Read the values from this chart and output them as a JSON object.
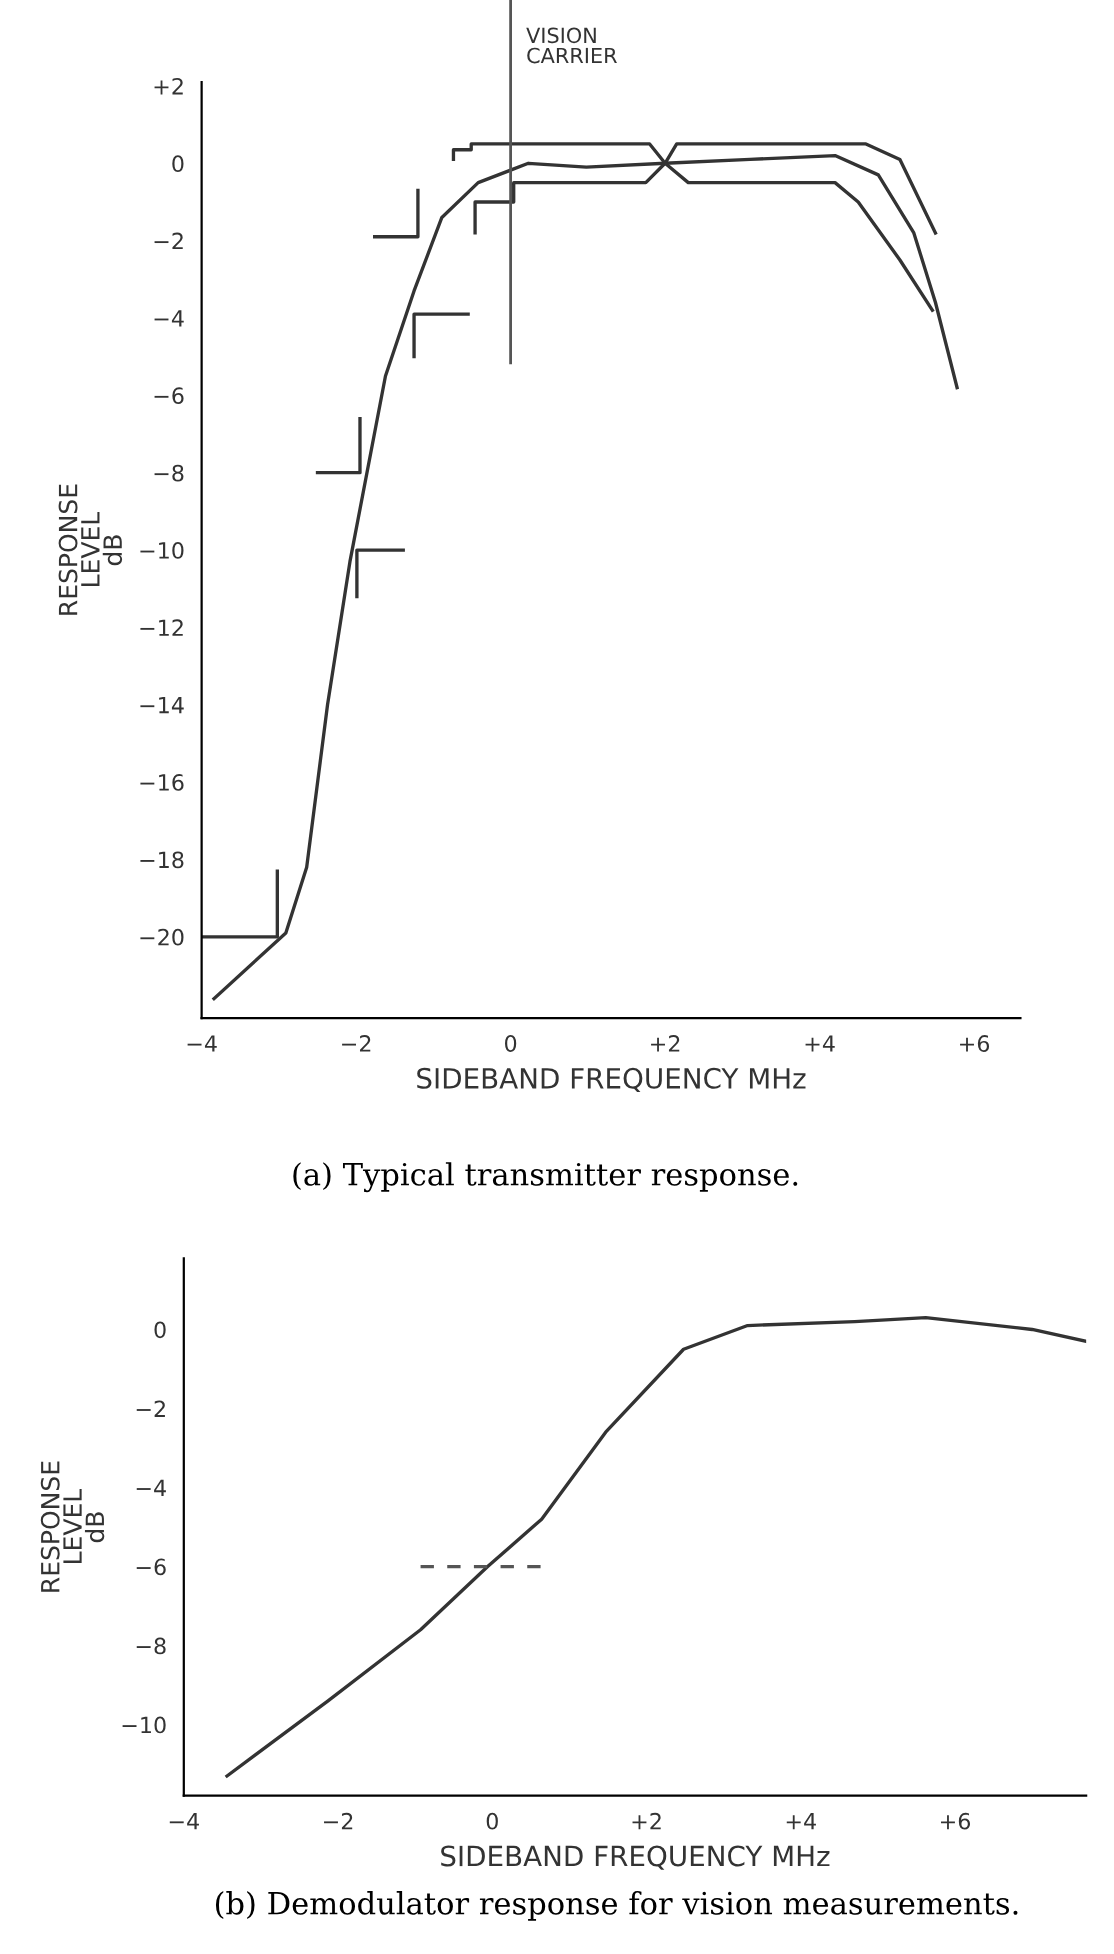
{
  "chart_data": [
    {
      "type": "line",
      "xlabel": "SIDEBAND FREQUENCY MHz",
      "ylabel": "RESPONSE\nLEVEL\ndB",
      "annotations": [
        "(a) Typical transmitter response."
      ],
      "xlim": [
        -4,
        6.6
      ],
      "ylim": [
        -22.1,
        2.1
      ],
      "xticks": [
        {
          "value": -4,
          "label": "−4"
        },
        {
          "value": -2,
          "label": "−2"
        },
        {
          "value": 0,
          "label": "0"
        },
        {
          "value": 2,
          "label": "+2"
        },
        {
          "value": 4,
          "label": "+4"
        },
        {
          "value": 6,
          "label": "+6"
        }
      ],
      "yticks": [
        {
          "value": 2,
          "label": "+2"
        },
        {
          "value": 0,
          "label": "0"
        },
        {
          "value": -2,
          "label": "−2"
        },
        {
          "value": -4,
          "label": "−4"
        },
        {
          "value": -6,
          "label": "−6"
        },
        {
          "value": -8,
          "label": "−8"
        },
        {
          "value": -10,
          "label": "−10"
        },
        {
          "value": -12,
          "label": "−12"
        },
        {
          "value": -14,
          "label": "−14"
        },
        {
          "value": -16,
          "label": "−16"
        },
        {
          "value": -18,
          "label": "−18"
        },
        {
          "value": -20,
          "label": "−20"
        }
      ],
      "ref_lines": [
        {
          "axis": "x",
          "value": 0,
          "label": "VISION\nCARRIER",
          "color": "#555555"
        }
      ],
      "grid": false,
      "legend": false,
      "marker": "none",
      "line_style": "solid",
      "series": [
        {
          "color": "#333333",
          "x": [
            -3.84,
            -2.91,
            -2.64,
            -2.37,
            -2.08,
            -1.62,
            -1.25,
            -0.89,
            -0.42,
            0.23,
            0.98,
            2.0,
            3.1,
            4.2,
            4.76,
            5.22,
            5.5,
            5.78
          ],
          "values": [
            -21.6,
            -19.9,
            -18.2,
            -14.0,
            -10.3,
            -5.5,
            -3.3,
            -1.4,
            -0.5,
            -0.0,
            -0.1,
            0.0,
            0.1,
            0.2,
            -0.3,
            -1.8,
            -3.6,
            -5.8
          ]
        },
        {
          "color": "#333333",
          "x": [
            -0.74,
            -0.74,
            -0.51,
            -0.51,
            1.8,
            2.0,
            2.15,
            4.6,
            5.04,
            5.5
          ],
          "values": [
            0.1,
            0.35,
            0.35,
            0.5,
            0.5,
            0.0,
            0.5,
            0.5,
            0.1,
            -1.8
          ]
        },
        {
          "color": "#333333",
          "x": [
            -0.46,
            -0.46,
            0.04,
            0.04,
            1.75,
            2.0,
            2.3,
            4.2,
            4.5,
            5.04,
            5.46
          ],
          "values": [
            -1.8,
            -1.0,
            -1.0,
            -0.5,
            -0.5,
            0.0,
            -0.5,
            -0.5,
            -1.0,
            -2.5,
            -3.8
          ]
        },
        {
          "color": "#333333",
          "x": [
            -1.76,
            -1.2,
            -1.2
          ],
          "values": [
            -1.9,
            -1.9,
            -0.7
          ]
        },
        {
          "color": "#333333",
          "x": [
            -1.25,
            -1.25,
            -0.55
          ],
          "values": [
            -5.0,
            -3.9,
            -3.9
          ]
        },
        {
          "color": "#333333",
          "x": [
            -2.5,
            -1.95,
            -1.95
          ],
          "values": [
            -8.0,
            -8.0,
            -6.6
          ]
        },
        {
          "color": "#333333",
          "x": [
            -1.99,
            -1.99,
            -1.39
          ],
          "values": [
            -11.2,
            -10.0,
            -10.0
          ]
        },
        {
          "color": "#333333",
          "x": [
            -4.0,
            -3.02,
            -3.02
          ],
          "values": [
            -20.0,
            -20.0,
            -18.3
          ]
        }
      ]
    },
    {
      "type": "line",
      "xlabel": "SIDEBAND FREQUENCY MHz",
      "ylabel": "RESPONSE\nLEVEL\ndB",
      "annotations": [
        "(b) Demodulator response for vision measurements."
      ],
      "xlim": [
        -4,
        7.7
      ],
      "ylim": [
        -11.8,
        1.8
      ],
      "xticks": [
        {
          "value": -4,
          "label": "−4"
        },
        {
          "value": -2,
          "label": "−2"
        },
        {
          "value": 0,
          "label": "0"
        },
        {
          "value": 2,
          "label": "+2"
        },
        {
          "value": 4,
          "label": "+4"
        },
        {
          "value": 6,
          "label": "+6"
        }
      ],
      "yticks": [
        {
          "value": 0,
          "label": "0"
        },
        {
          "value": -2,
          "label": "−2"
        },
        {
          "value": -4,
          "label": "−4"
        },
        {
          "value": -6,
          "label": "−6"
        },
        {
          "value": -8,
          "label": "−8"
        },
        {
          "value": -10,
          "label": "−10"
        }
      ],
      "grid": false,
      "legend": false,
      "marker": "none",
      "series": [
        {
          "color": "#333333",
          "line_style": "solid",
          "x": [
            -3.44,
            -2.13,
            -0.93,
            -0.06,
            0.64,
            1.47,
            2.48,
            3.31,
            4.7,
            5.62,
            7.0,
            7.7
          ],
          "values": [
            -11.3,
            -9.4,
            -7.6,
            -6.0,
            -4.8,
            -2.6,
            -0.5,
            0.1,
            0.2,
            0.3,
            0.0,
            -0.3
          ]
        },
        {
          "color": "#555555",
          "line_style": "dashed",
          "x": [
            -0.93,
            0.64
          ],
          "values": [
            -6.0,
            -6.0
          ]
        }
      ]
    }
  ]
}
